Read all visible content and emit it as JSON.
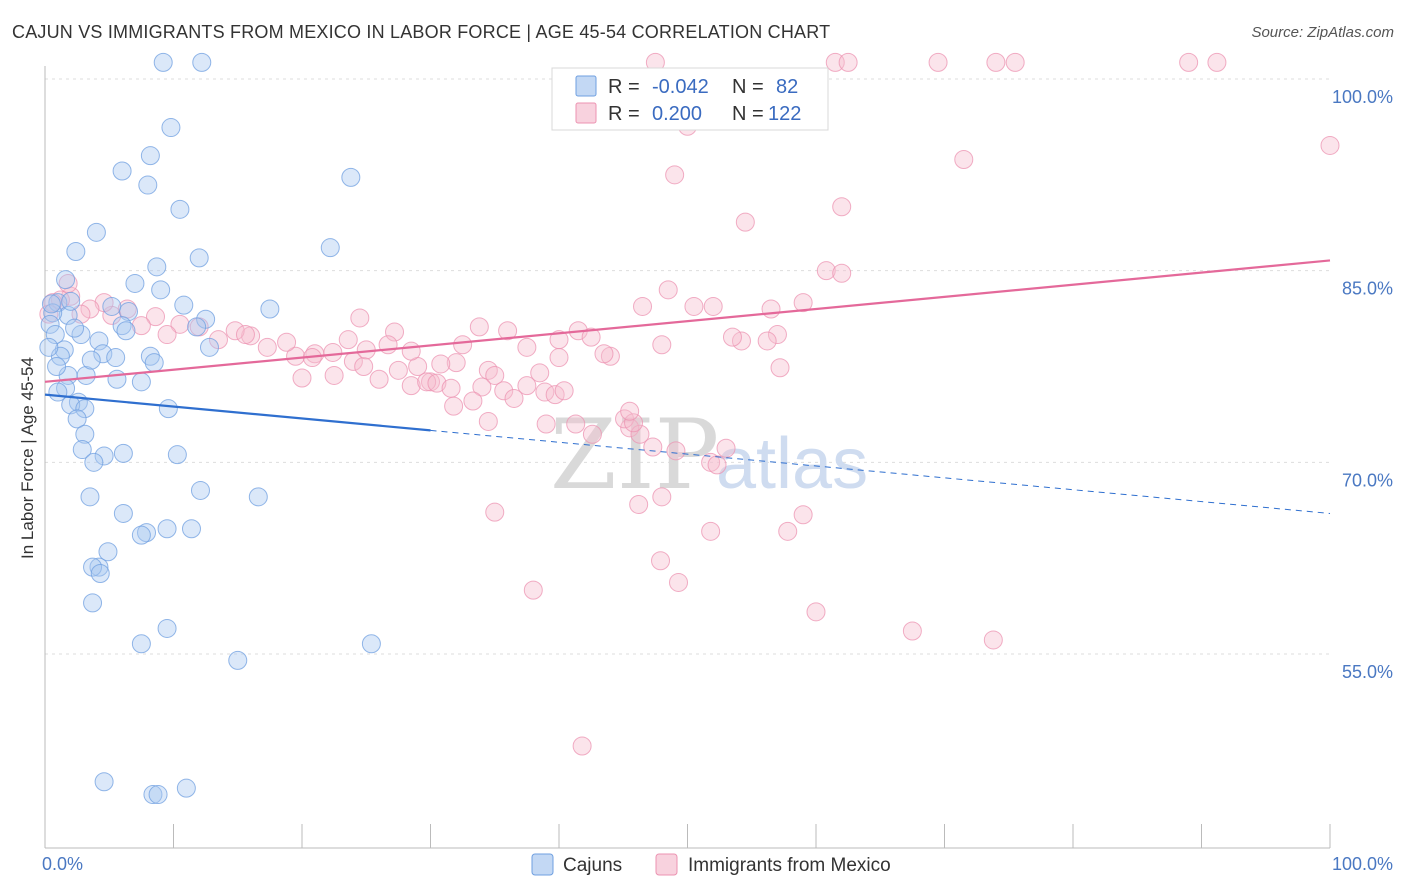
{
  "title": "CAJUN VS IMMIGRANTS FROM MEXICO IN LABOR FORCE | AGE 45-54 CORRELATION CHART",
  "source": "Source: ZipAtlas.com",
  "colors": {
    "cajun_fill": "#a9c7f0",
    "cajun_stroke": "#6f9fe0",
    "cajun_line": "#2f6fcf",
    "mexico_fill": "#f5bfd0",
    "mexico_stroke": "#ec93b1",
    "mexico_line": "#e4699a",
    "tick_text": "#4a78c2",
    "grid": "#dddddd"
  },
  "legend": {
    "row1": {
      "r_label": "R =",
      "r_value": "-0.042",
      "n_label": "N =",
      "n_value": "82"
    },
    "row2": {
      "r_label": "R =",
      "r_value": "0.200",
      "n_label": "N =",
      "n_value": "122"
    }
  },
  "watermark": {
    "zip": "ZIP",
    "atlas": "atlas"
  },
  "chart_data": {
    "type": "scatter",
    "title": "CAJUN VS IMMIGRANTS FROM MEXICO IN LABOR FORCE | AGE 45-54 CORRELATION CHART",
    "xlabel": "",
    "ylabel": "In Labor Force | Age 45-54",
    "xlim": [
      0,
      100
    ],
    "ylim": [
      40,
      102
    ],
    "x_tick_labels": [
      "0.0%",
      "100.0%"
    ],
    "y_ticks": [
      55,
      70,
      85,
      100
    ],
    "y_tick_labels": [
      "55.0%",
      "70.0%",
      "85.0%",
      "100.0%"
    ],
    "grid": true,
    "series": [
      {
        "name": "Cajuns",
        "r": -0.042,
        "n": 82,
        "trend": {
          "x0": 0,
          "y0": 75.3,
          "x1": 30,
          "y1": 72.5,
          "dash_x1": 100,
          "dash_y1": 66.0
        },
        "points": [
          [
            9.2,
            101.3
          ],
          [
            12.2,
            101.3
          ],
          [
            9.8,
            96.2
          ],
          [
            8.2,
            94.0
          ],
          [
            6.0,
            92.8
          ],
          [
            8.0,
            91.7
          ],
          [
            23.8,
            92.3
          ],
          [
            10.5,
            89.8
          ],
          [
            4.0,
            88.0
          ],
          [
            22.2,
            86.8
          ],
          [
            2.4,
            86.5
          ],
          [
            12.0,
            86.0
          ],
          [
            8.7,
            85.3
          ],
          [
            1.6,
            84.3
          ],
          [
            7.0,
            84.0
          ],
          [
            9.0,
            83.5
          ],
          [
            1.0,
            82.5
          ],
          [
            10.8,
            82.3
          ],
          [
            17.5,
            82.0
          ],
          [
            5.2,
            82.2
          ],
          [
            6.5,
            81.8
          ],
          [
            1.8,
            81.5
          ],
          [
            0.6,
            81.7
          ],
          [
            12.5,
            81.2
          ],
          [
            0.4,
            80.8
          ],
          [
            6.0,
            80.7
          ],
          [
            0.8,
            80.0
          ],
          [
            2.8,
            80.0
          ],
          [
            4.2,
            79.5
          ],
          [
            1.5,
            78.8
          ],
          [
            4.5,
            78.5
          ],
          [
            1.2,
            78.3
          ],
          [
            5.5,
            78.2
          ],
          [
            8.2,
            78.3
          ],
          [
            8.5,
            77.8
          ],
          [
            12.8,
            79.0
          ],
          [
            1.8,
            76.8
          ],
          [
            3.2,
            76.8
          ],
          [
            1.6,
            75.8
          ],
          [
            5.6,
            76.5
          ],
          [
            7.5,
            76.3
          ],
          [
            1.0,
            75.5
          ],
          [
            2.6,
            74.7
          ],
          [
            2.0,
            74.5
          ],
          [
            3.1,
            74.2
          ],
          [
            9.6,
            74.2
          ],
          [
            2.5,
            73.4
          ],
          [
            3.1,
            72.2
          ],
          [
            2.9,
            71.0
          ],
          [
            6.1,
            70.7
          ],
          [
            10.3,
            70.6
          ],
          [
            4.6,
            70.5
          ],
          [
            3.8,
            70.0
          ],
          [
            12.1,
            67.8
          ],
          [
            3.5,
            67.3
          ],
          [
            16.6,
            67.3
          ],
          [
            6.1,
            66.0
          ],
          [
            9.5,
            64.8
          ],
          [
            7.9,
            64.5
          ],
          [
            11.4,
            64.8
          ],
          [
            7.5,
            64.3
          ],
          [
            4.9,
            63.0
          ],
          [
            4.2,
            61.8
          ],
          [
            3.7,
            61.8
          ],
          [
            4.3,
            61.3
          ],
          [
            3.7,
            59.0
          ],
          [
            9.5,
            57.0
          ],
          [
            7.5,
            55.8
          ],
          [
            25.4,
            55.8
          ],
          [
            15.0,
            54.5
          ],
          [
            4.6,
            45.0
          ],
          [
            8.4,
            44.0
          ],
          [
            8.8,
            44.0
          ],
          [
            11.0,
            44.5
          ],
          [
            0.3,
            79.0
          ],
          [
            2.3,
            80.5
          ],
          [
            0.9,
            77.5
          ],
          [
            6.3,
            80.3
          ],
          [
            3.6,
            78.0
          ],
          [
            11.8,
            80.6
          ],
          [
            0.5,
            82.4
          ],
          [
            2.0,
            82.6
          ]
        ]
      },
      {
        "name": "Immigrants from Mexico",
        "r": 0.2,
        "n": 122,
        "trend": {
          "x0": 0,
          "y0": 76.3,
          "x1": 100,
          "y1": 85.8
        },
        "points": [
          [
            47.5,
            101.3
          ],
          [
            61.5,
            101.3
          ],
          [
            62.5,
            101.3
          ],
          [
            69.5,
            101.3
          ],
          [
            74.0,
            101.3
          ],
          [
            75.5,
            101.3
          ],
          [
            89.0,
            101.3
          ],
          [
            91.2,
            101.3
          ],
          [
            50.0,
            96.3
          ],
          [
            100.0,
            94.8
          ],
          [
            71.5,
            93.7
          ],
          [
            49.0,
            92.5
          ],
          [
            62.0,
            90.0
          ],
          [
            54.5,
            88.8
          ],
          [
            60.8,
            85.0
          ],
          [
            62.0,
            84.8
          ],
          [
            48.5,
            83.5
          ],
          [
            50.5,
            82.2
          ],
          [
            52.0,
            82.2
          ],
          [
            59.0,
            82.5
          ],
          [
            56.5,
            82.0
          ],
          [
            46.5,
            82.2
          ],
          [
            36.0,
            80.3
          ],
          [
            41.5,
            80.3
          ],
          [
            57.0,
            80.0
          ],
          [
            42.5,
            79.8
          ],
          [
            48.0,
            79.2
          ],
          [
            54.2,
            79.5
          ],
          [
            56.2,
            79.5
          ],
          [
            37.5,
            79.0
          ],
          [
            32.5,
            79.2
          ],
          [
            40.0,
            78.2
          ],
          [
            44.0,
            78.3
          ],
          [
            32.0,
            77.8
          ],
          [
            30.8,
            77.7
          ],
          [
            34.5,
            77.2
          ],
          [
            29.0,
            77.5
          ],
          [
            27.5,
            77.2
          ],
          [
            24.0,
            77.9
          ],
          [
            35.0,
            76.8
          ],
          [
            38.5,
            77.0
          ],
          [
            30.0,
            76.3
          ],
          [
            28.5,
            76.0
          ],
          [
            26.0,
            76.5
          ],
          [
            22.5,
            76.8
          ],
          [
            20.0,
            76.6
          ],
          [
            24.8,
            77.5
          ],
          [
            29.7,
            76.3
          ],
          [
            30.5,
            76.2
          ],
          [
            31.6,
            75.8
          ],
          [
            34.0,
            75.9
          ],
          [
            35.7,
            75.6
          ],
          [
            37.5,
            76.0
          ],
          [
            38.9,
            75.5
          ],
          [
            39.7,
            75.3
          ],
          [
            40.4,
            75.6
          ],
          [
            36.5,
            75.0
          ],
          [
            33.3,
            74.8
          ],
          [
            31.8,
            74.4
          ],
          [
            34.5,
            73.2
          ],
          [
            39.0,
            73.0
          ],
          [
            41.3,
            73.0
          ],
          [
            45.5,
            72.7
          ],
          [
            46.3,
            72.2
          ],
          [
            45.1,
            73.4
          ],
          [
            45.8,
            73.1
          ],
          [
            42.6,
            72.2
          ],
          [
            45.5,
            74.0
          ],
          [
            47.3,
            71.2
          ],
          [
            49.1,
            70.9
          ],
          [
            51.8,
            70.0
          ],
          [
            52.3,
            69.8
          ],
          [
            53.0,
            71.1
          ],
          [
            48.0,
            67.3
          ],
          [
            46.2,
            66.7
          ],
          [
            35.0,
            66.1
          ],
          [
            59.0,
            65.9
          ],
          [
            57.8,
            64.6
          ],
          [
            51.8,
            64.6
          ],
          [
            47.9,
            62.3
          ],
          [
            38.0,
            60.0
          ],
          [
            49.3,
            60.6
          ],
          [
            60.0,
            58.3
          ],
          [
            67.5,
            56.8
          ],
          [
            73.8,
            56.1
          ],
          [
            41.8,
            47.8
          ],
          [
            53.5,
            79.8
          ],
          [
            57.2,
            77.4
          ],
          [
            40.0,
            79.6
          ],
          [
            27.2,
            80.2
          ],
          [
            23.6,
            79.6
          ],
          [
            25.0,
            78.8
          ],
          [
            21.0,
            78.5
          ],
          [
            19.5,
            78.3
          ],
          [
            17.3,
            79.0
          ],
          [
            16.0,
            79.9
          ],
          [
            14.8,
            80.3
          ],
          [
            13.5,
            79.6
          ],
          [
            12.0,
            80.6
          ],
          [
            10.5,
            80.8
          ],
          [
            9.5,
            80.0
          ],
          [
            8.6,
            81.4
          ],
          [
            7.5,
            80.7
          ],
          [
            6.4,
            82.0
          ],
          [
            5.2,
            81.5
          ],
          [
            4.6,
            82.5
          ],
          [
            3.5,
            82.0
          ],
          [
            2.8,
            81.6
          ],
          [
            2.0,
            83.0
          ],
          [
            1.2,
            82.7
          ],
          [
            0.6,
            82.5
          ],
          [
            0.3,
            81.6
          ],
          [
            1.8,
            84.0
          ],
          [
            15.6,
            80.0
          ],
          [
            18.8,
            79.4
          ],
          [
            22.4,
            78.6
          ],
          [
            33.8,
            80.6
          ],
          [
            28.5,
            78.7
          ],
          [
            20.8,
            78.2
          ],
          [
            26.7,
            79.2
          ],
          [
            24.5,
            81.3
          ],
          [
            43.5,
            78.5
          ]
        ]
      }
    ]
  }
}
